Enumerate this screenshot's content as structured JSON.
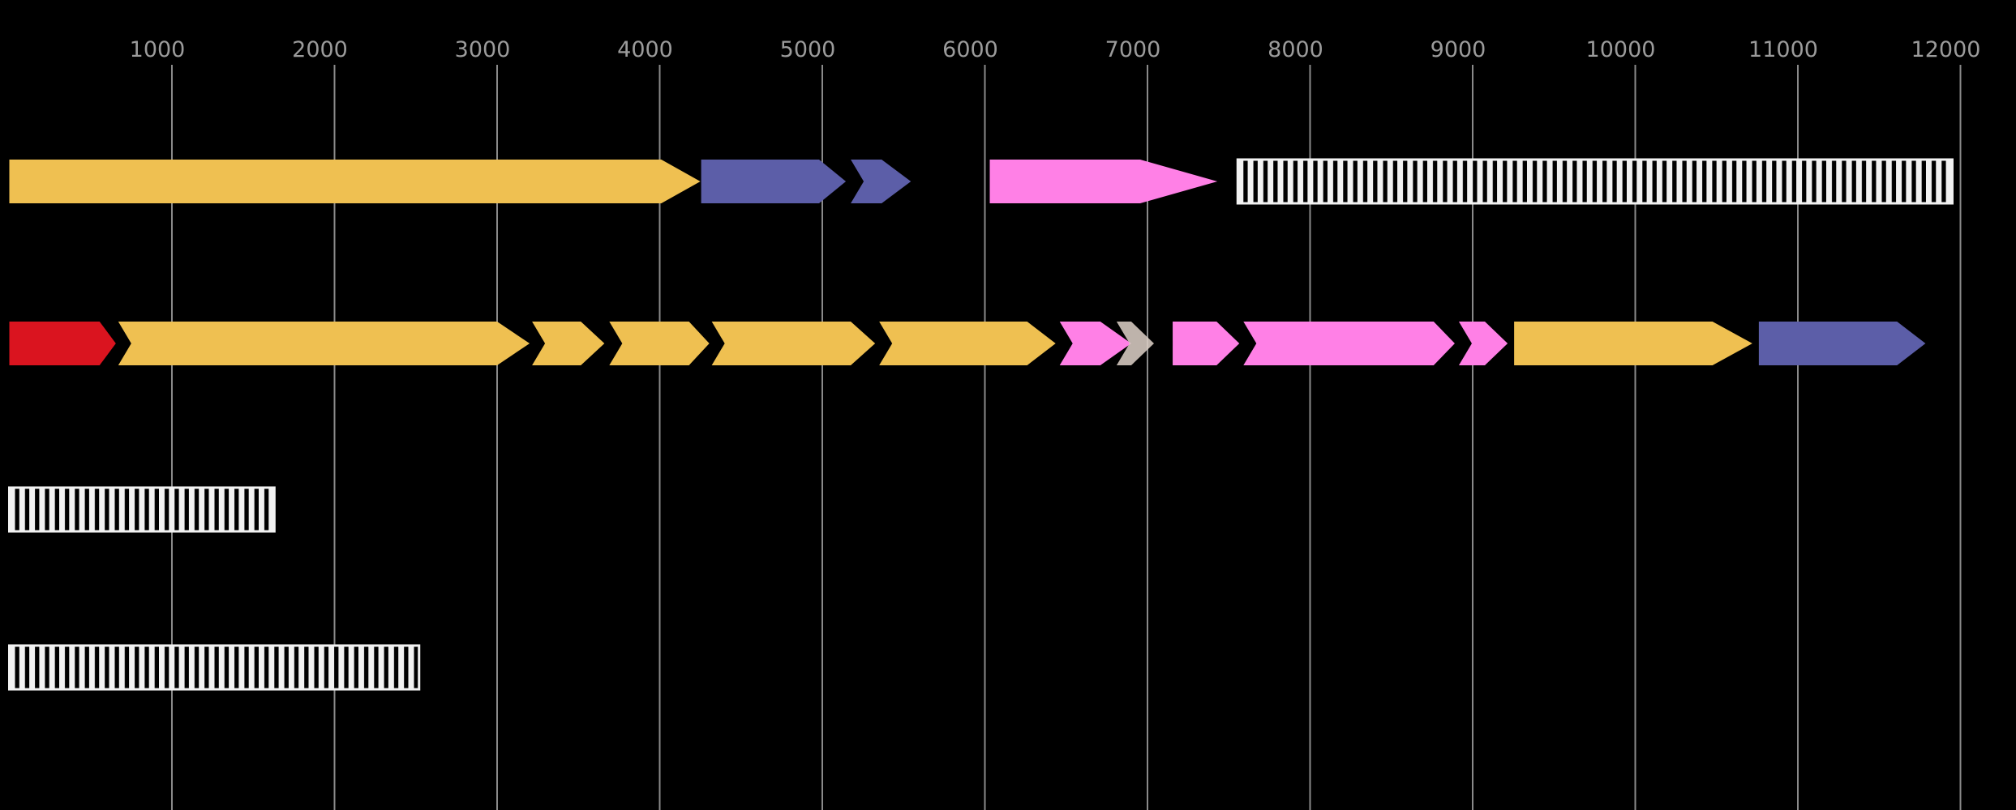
{
  "chart_data": {
    "type": "gene-annotation-map",
    "title": "",
    "background": "#000000",
    "axis": {
      "ticks": [
        1000,
        2000,
        3000,
        4000,
        5000,
        6000,
        7000,
        8000,
        9000,
        10000,
        11000,
        12000
      ],
      "range": [
        0,
        12340
      ],
      "gridline_color": "#8a8a8a",
      "tick_label_color": "#9b9b9b",
      "grid": true,
      "legend": "none"
    },
    "colors": {
      "gold": "#efc051",
      "blue": "#5c5ea8",
      "pink": "#ff80e6",
      "red": "#da141f",
      "taupe": "#d8ccc3",
      "stripe_light": "#f2f2f2",
      "stripe_dark": "#000000"
    },
    "tracks": [
      {
        "name": "track-1",
        "features": [
          {
            "shape": "arrow",
            "start": 0,
            "end": 4250,
            "color": "gold",
            "head": 240,
            "back": "flat"
          },
          {
            "shape": "arrow",
            "start": 4255,
            "end": 5145,
            "color": "blue",
            "head": 165,
            "back": "flat"
          },
          {
            "shape": "arrow",
            "start": 5175,
            "end": 5545,
            "color": "blue",
            "head": 180,
            "back": "notch"
          },
          {
            "shape": "arrow",
            "start": 6030,
            "end": 7430,
            "color": "pink",
            "head": 475,
            "back": "flat"
          },
          {
            "shape": "striped-box",
            "start": 7555,
            "end": 11950
          }
        ]
      },
      {
        "name": "track-2",
        "features": [
          {
            "shape": "arrow",
            "start": 670,
            "end": 3200,
            "color": "gold",
            "head": 200,
            "back": "notch"
          },
          {
            "shape": "arrow",
            "start": 0,
            "end": 655,
            "color": "red",
            "head": 100,
            "back": "flat"
          },
          {
            "shape": "arrow",
            "start": 3215,
            "end": 3660,
            "color": "gold",
            "head": 145,
            "back": "notch"
          },
          {
            "shape": "arrow",
            "start": 3690,
            "end": 4305,
            "color": "gold",
            "head": 125,
            "back": "notch"
          },
          {
            "shape": "arrow",
            "start": 4320,
            "end": 5325,
            "color": "gold",
            "head": 150,
            "back": "notch"
          },
          {
            "shape": "arrow",
            "start": 5350,
            "end": 6435,
            "color": "gold",
            "head": 175,
            "back": "notch"
          },
          {
            "shape": "arrow",
            "start": 6460,
            "end": 6900,
            "color": "pink",
            "head": 190,
            "back": "notch"
          },
          {
            "shape": "arrow",
            "start": 6810,
            "end": 7040,
            "color": "taupe",
            "head": 140,
            "back": "notch",
            "opacity": 0.88
          },
          {
            "shape": "arrow",
            "start": 7155,
            "end": 7565,
            "color": "pink",
            "head": 140,
            "back": "flat"
          },
          {
            "shape": "arrow",
            "start": 7590,
            "end": 8890,
            "color": "pink",
            "head": 130,
            "back": "notch"
          },
          {
            "shape": "arrow",
            "start": 8915,
            "end": 9215,
            "color": "pink",
            "head": 140,
            "back": "notch"
          },
          {
            "shape": "arrow",
            "start": 9255,
            "end": 10720,
            "color": "gold",
            "head": 245,
            "back": "flat"
          },
          {
            "shape": "arrow",
            "start": 10760,
            "end": 11785,
            "color": "blue",
            "head": 175,
            "back": "flat"
          }
        ]
      },
      {
        "name": "track-3",
        "features": [
          {
            "shape": "striped-box",
            "start": 0,
            "end": 1630
          }
        ]
      },
      {
        "name": "track-4",
        "features": [
          {
            "shape": "striped-box",
            "start": 0,
            "end": 2520
          }
        ]
      }
    ]
  }
}
